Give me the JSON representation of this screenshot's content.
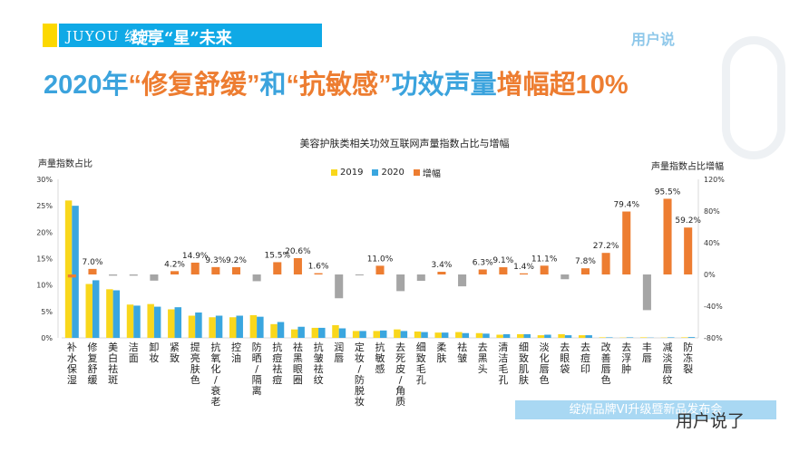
{
  "header": {
    "brand_logo": "JUYOU 绽妍",
    "slogan": "绽享“星”未来",
    "corner_logo": "用户说",
    "headline_parts": [
      {
        "text": "2020年",
        "color": "blue"
      },
      {
        "text": "“修复舒缓”",
        "color": "orange"
      },
      {
        "text": "和",
        "color": "blue"
      },
      {
        "text": "“抗敏感”",
        "color": "orange"
      },
      {
        "text": "功效声量",
        "color": "blue"
      },
      {
        "text": "增幅超10%",
        "color": "orange"
      }
    ]
  },
  "footer": {
    "banner": "绽妍品牌VI升级暨新品发布会",
    "watermark": "用户说了"
  },
  "colors": {
    "y2019": "#f9d71c",
    "y2020": "#3aa6df",
    "growth_pos": "#ed7d31",
    "growth_neg": "#a5a5a5",
    "headline_blue": "#3ba3dd",
    "headline_orange": "#ed7d31"
  },
  "chart_data": {
    "type": "bar",
    "title": "美容护肤类相关功效互联网声量指数占比与增幅",
    "ylabel_left": "声量指数占比",
    "ylabel_right": "声量指数占比增幅",
    "ylim_left": [
      0,
      30
    ],
    "ylim_right": [
      -80,
      120
    ],
    "yticks_left": [
      "0%",
      "5%",
      "10%",
      "15%",
      "20%",
      "25%",
      "30%"
    ],
    "yticks_right": [
      "-80%",
      "-40%",
      "0%",
      "40%",
      "80%",
      "120%"
    ],
    "legend_position": "top",
    "grid": false,
    "categories": [
      "补水保湿",
      "修复舒缓",
      "美白祛斑",
      "洁面",
      "卸妆",
      "紧致",
      "提亮肤色",
      "抗氧化/衰老",
      "控油",
      "防晒/隔离",
      "抗痘祛痘",
      "祛黑眼圈",
      "抗皱祛纹",
      "润唇",
      "定妆/防脱妆",
      "抗敏感",
      "去死皮/角质",
      "细致毛孔",
      "柔肤",
      "祛皱",
      "去黑头",
      "清洁毛孔",
      "细致肌肤",
      "淡化唇色",
      "去眼袋",
      "去痘印",
      "改善唇色",
      "去浮肿",
      "丰唇",
      "减淡唇纹",
      "防冻裂"
    ],
    "series": [
      {
        "name": "2019",
        "axis": "left",
        "values": [
          26.0,
          10.2,
          9.2,
          6.3,
          6.4,
          5.4,
          4.2,
          3.9,
          3.9,
          4.3,
          2.6,
          1.6,
          1.9,
          2.4,
          1.3,
          1.3,
          1.6,
          1.2,
          1.0,
          1.1,
          0.9,
          0.6,
          0.7,
          0.5,
          0.7,
          0.5,
          0.1,
          0.05,
          0.1,
          0.05,
          0.1
        ]
      },
      {
        "name": "2020",
        "axis": "left",
        "values": [
          25.0,
          10.9,
          9.0,
          6.1,
          5.9,
          5.8,
          4.8,
          4.2,
          4.2,
          4.0,
          3.0,
          2.1,
          1.9,
          1.8,
          1.3,
          1.4,
          1.3,
          1.1,
          1.0,
          0.9,
          0.8,
          0.7,
          0.7,
          0.6,
          0.5,
          0.5,
          0.1,
          0.1,
          0.05,
          0.1,
          0.15
        ]
      },
      {
        "name": "增幅",
        "axis": "right",
        "values": [
          -3.8,
          7.0,
          -1.5,
          -1.5,
          -7.8,
          4.2,
          14.9,
          9.3,
          9.2,
          -8.5,
          15.5,
          20.6,
          1.6,
          -30,
          -0.5,
          11.0,
          -21,
          -8,
          3.4,
          -15,
          6.3,
          9.1,
          1.4,
          11.1,
          -6,
          7.8,
          27.2,
          79.4,
          -45,
          95.5,
          59.2
        ]
      }
    ],
    "data_labels": [
      "",
      "7.0%",
      "",
      "",
      "",
      "4.2%",
      "14.9%",
      "9.3%",
      "9.2%",
      "",
      "15.5%",
      "20.6%",
      "1.6%",
      "",
      "",
      "11.0%",
      "",
      "",
      "3.4%",
      "",
      "6.3%",
      "9.1%",
      "1.4%",
      "11.1%",
      "",
      "7.8%",
      "27.2%",
      "79.4%",
      "",
      "95.5%",
      "59.2%"
    ]
  }
}
